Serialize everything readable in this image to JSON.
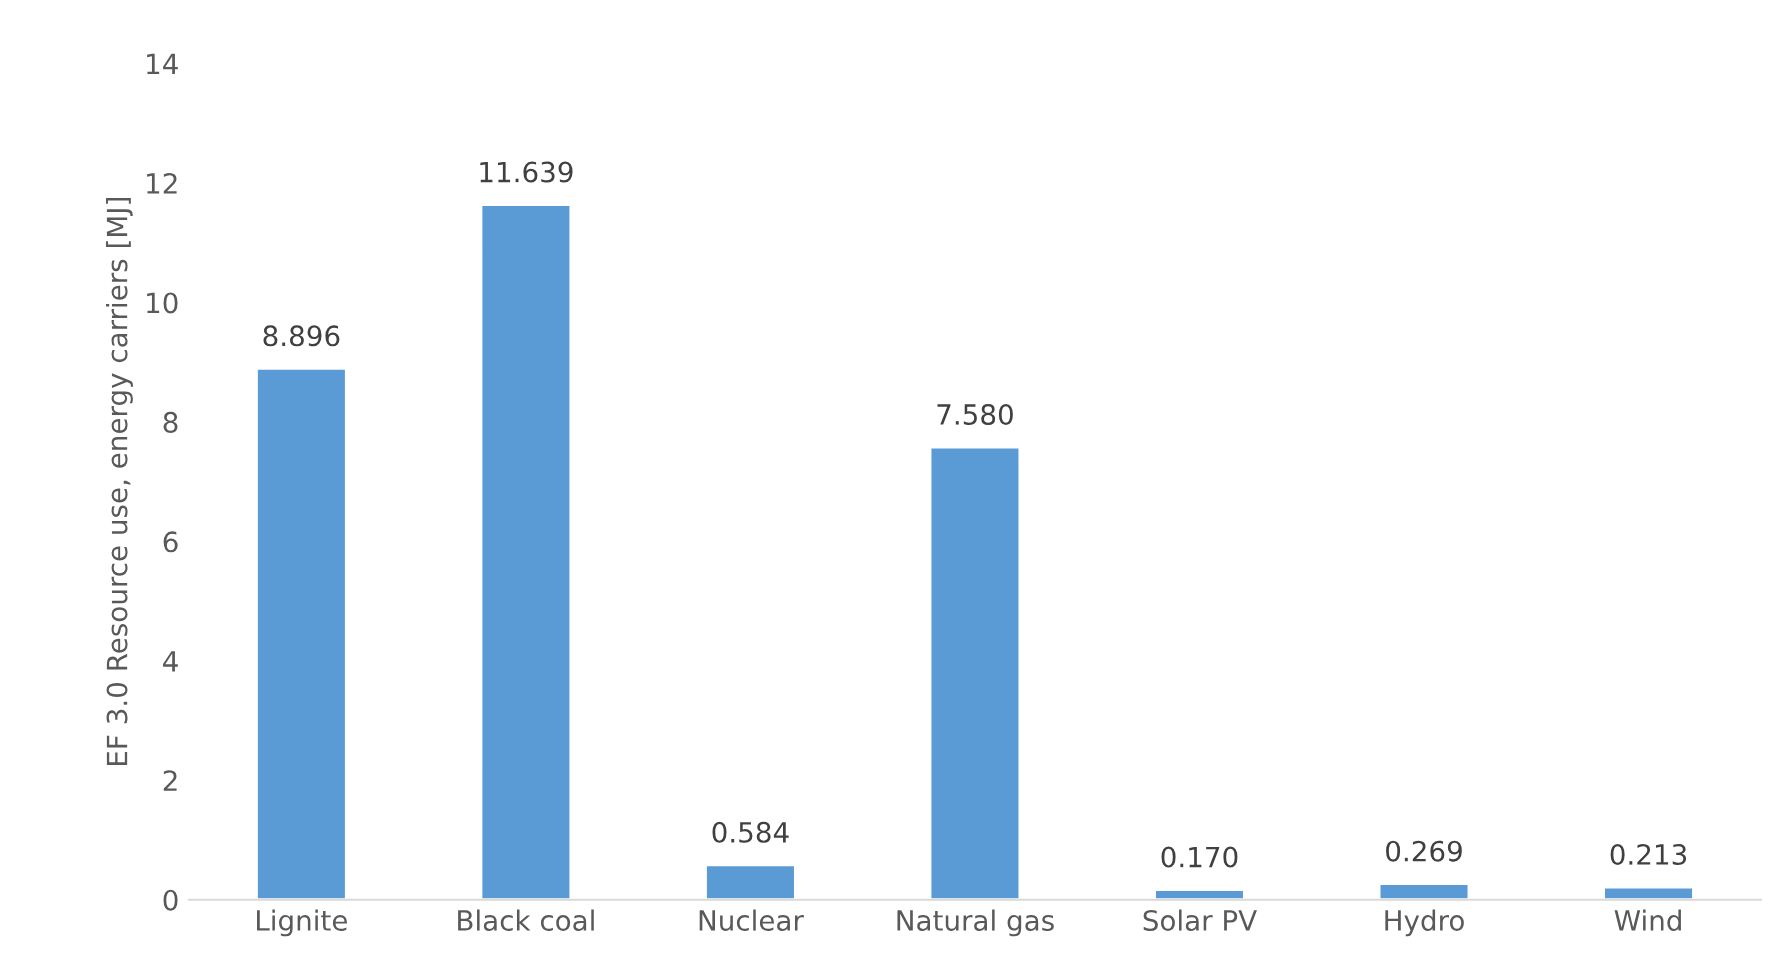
{
  "chart_data": {
    "type": "bar",
    "ylabel": "EF 3.0 Resource use, energy carriers [MJ]",
    "categories": [
      "Lignite",
      "Black coal",
      "Nuclear",
      "Natural gas",
      "Solar PV",
      "Hydro",
      "Wind"
    ],
    "values": [
      8.896,
      11.639,
      0.584,
      7.58,
      0.17,
      0.269,
      0.213
    ],
    "value_labels": [
      "8.896",
      "11.639",
      "0.584",
      "7.580",
      "0.170",
      "0.269",
      "0.213"
    ],
    "color": "#5b9bd5",
    "ylim": [
      0,
      14
    ],
    "yticks": [
      0,
      2,
      4,
      6,
      8,
      10,
      12,
      14
    ],
    "grid": false
  }
}
